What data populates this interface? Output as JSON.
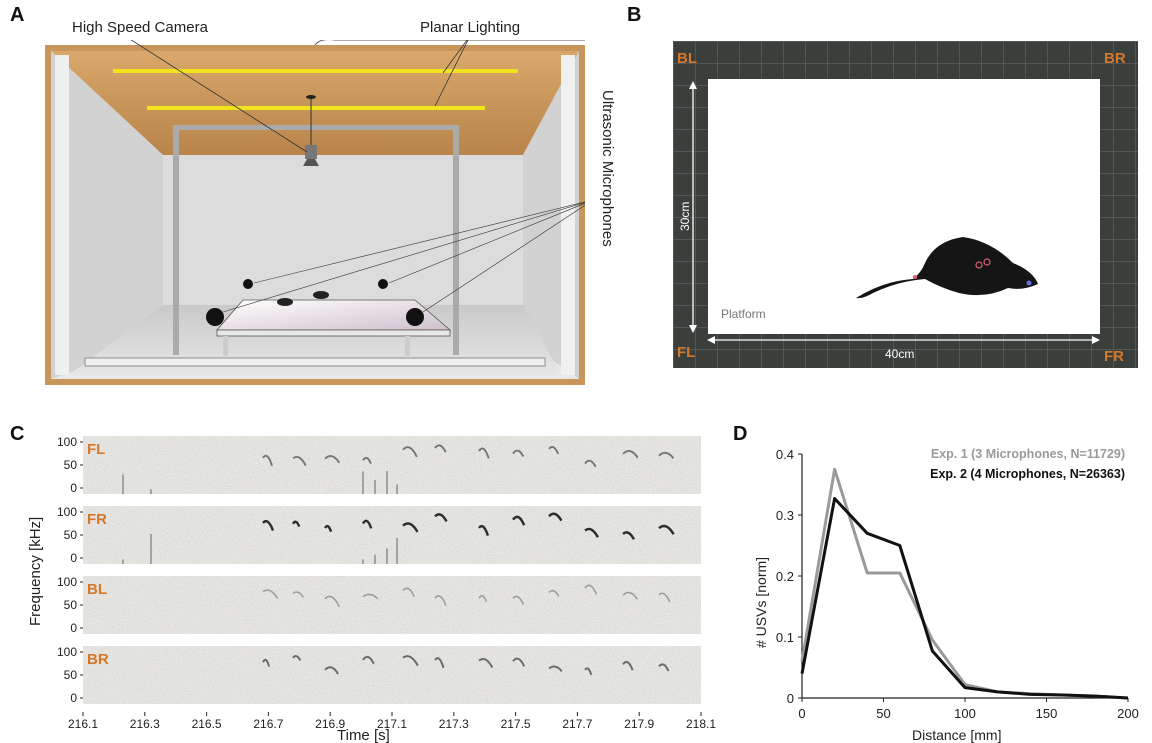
{
  "panel_labels": {
    "a": "A",
    "b": "B",
    "c": "C",
    "d": "D"
  },
  "panel_a": {
    "labels": {
      "camera": "High Speed Camera",
      "lighting": "Planar Lighting",
      "microphones": "Ultrasonic Microphones"
    }
  },
  "panel_b": {
    "corners": {
      "bl": "BL",
      "br": "BR",
      "fl": "FL",
      "fr": "FR"
    },
    "width_label": "40cm",
    "height_label": "30cm",
    "platform_label": "Platform",
    "corner_color": "#d4782a",
    "background_color": "#3a3f3c"
  },
  "panel_c": {
    "channels": [
      "FL",
      "FR",
      "BL",
      "BR"
    ],
    "channel_color": "#d4782a",
    "yticks": [
      "100",
      "50",
      "0"
    ],
    "ylabel": "Frequency [kHz]",
    "xlabel": "Time [s]",
    "xticks": [
      "216.1",
      "216.3",
      "216.5",
      "216.7",
      "216.9",
      "217.1",
      "217.3",
      "217.5",
      "217.7",
      "217.9",
      "218.1"
    ]
  },
  "chart_data": {
    "type": "line",
    "xlabel": "Distance [mm]",
    "ylabel": "# USVs [norm]",
    "xlim": [
      0,
      200
    ],
    "ylim": [
      0,
      0.4
    ],
    "xticks": [
      "0",
      "50",
      "100",
      "150",
      "200"
    ],
    "yticks": [
      "0",
      "0.1",
      "0.2",
      "0.3",
      "0.4"
    ],
    "legend_position": "top-right",
    "series": [
      {
        "name": "Exp. 1 (3 Microphones, N=11729)",
        "color": "#9a9a9a",
        "x": [
          0,
          20,
          40,
          60,
          80,
          100,
          120,
          140,
          160,
          180,
          200
        ],
        "y": [
          0.06,
          0.375,
          0.205,
          0.205,
          0.095,
          0.022,
          0.01,
          0.007,
          0.005,
          0.003,
          0.0
        ]
      },
      {
        "name": "Exp. 2 (4 Microphones, N=26363)",
        "color": "#111111",
        "x": [
          0,
          20,
          40,
          60,
          80,
          100,
          120,
          140,
          160,
          180,
          200
        ],
        "y": [
          0.04,
          0.327,
          0.27,
          0.25,
          0.077,
          0.017,
          0.01,
          0.006,
          0.005,
          0.003,
          0.0
        ]
      }
    ]
  }
}
